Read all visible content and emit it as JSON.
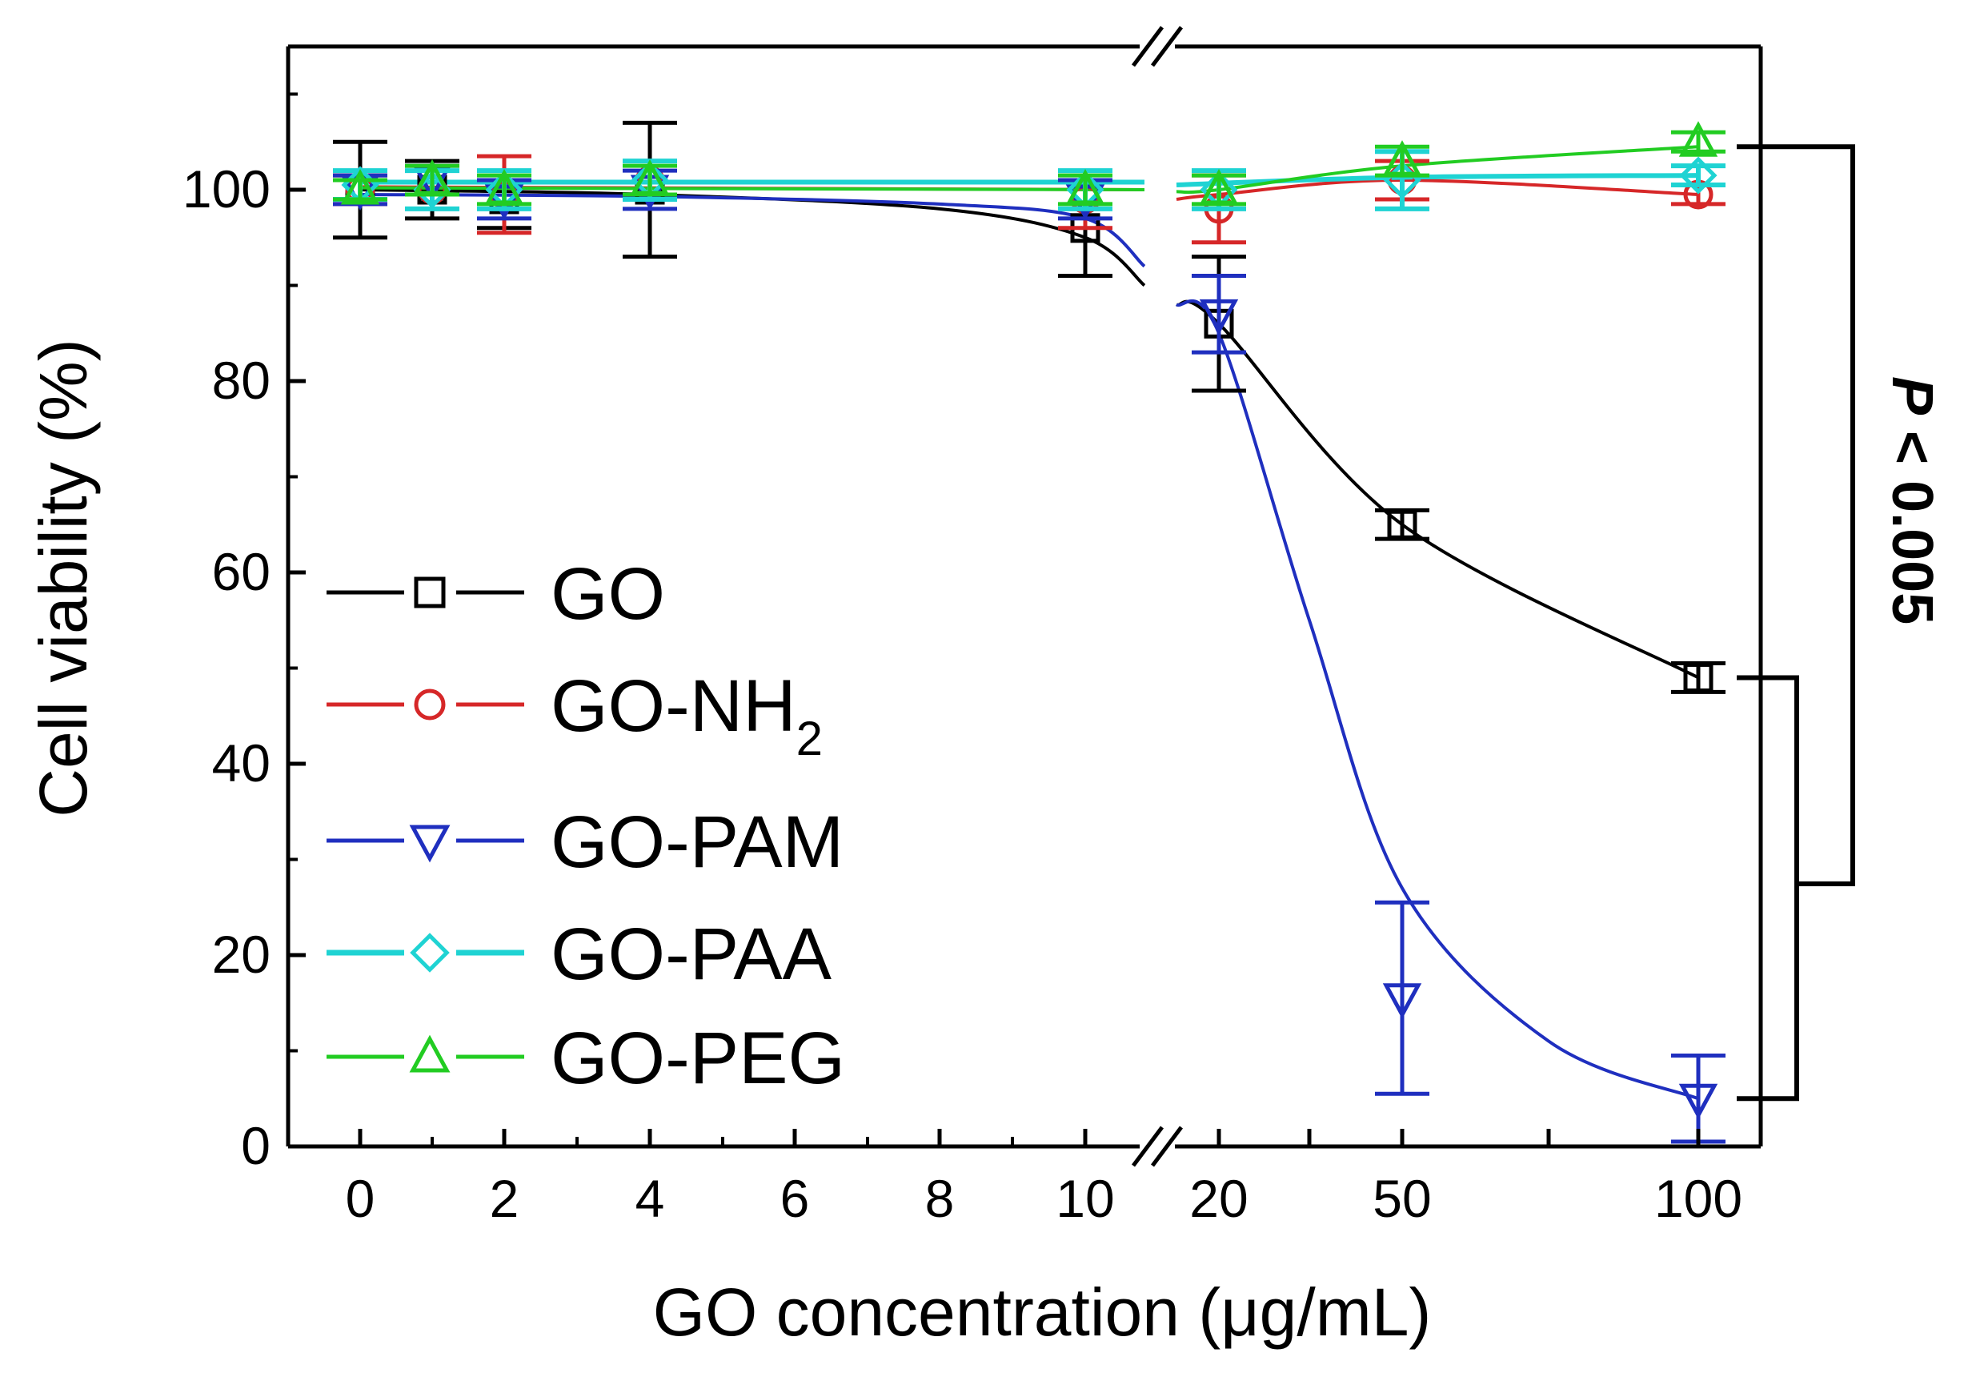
{
  "chart_data": {
    "type": "scatter",
    "xlabel": "GO concentration (μg/mL)",
    "ylabel": "Cell viability (%)",
    "ylim": [
      0,
      115
    ],
    "y_ticks": [
      "0",
      "20",
      "40",
      "60",
      "80",
      "100"
    ],
    "x_ticks": [
      "0",
      "2",
      "4",
      "6",
      "8",
      "10",
      "20",
      "50",
      "100"
    ],
    "x_axis_break": "between 10 and 20",
    "annotation": {
      "italic": "P",
      "rest": " < 0.005",
      "compares": [
        "GO-PEG vs GO (100 μg/mL)",
        "GO vs GO-PAM (100 μg/mL)"
      ]
    },
    "series": [
      {
        "name": "GO",
        "name_main": "GO",
        "name_sub": "",
        "color": "#000000",
        "marker": "square",
        "x": [
          "0",
          "1",
          "2",
          "4",
          "10",
          "20",
          "50",
          "100"
        ],
        "y": [
          100,
          100,
          99,
          100,
          96,
          86,
          65,
          49
        ],
        "err": [
          5,
          3,
          3,
          7,
          5,
          7,
          1.5,
          1.5
        ]
      },
      {
        "name": "GO-NH2",
        "name_main": "GO-NH",
        "name_sub": "2",
        "color": "#d62728",
        "marker": "circle",
        "x": [
          "0",
          "1",
          "2",
          "4",
          "10",
          "20",
          "50",
          "100"
        ],
        "y": [
          100,
          100,
          99.5,
          101,
          99,
          98,
          101,
          99.5
        ],
        "err": [
          1.5,
          2,
          4,
          2,
          3,
          3.5,
          2,
          1
        ]
      },
      {
        "name": "GO-PAM",
        "name_main": "GO-PAM",
        "name_sub": "",
        "color": "#1f2fbf",
        "marker": "triangle-down",
        "x": [
          "0",
          "1",
          "2",
          "4",
          "10",
          "20",
          "50",
          "100"
        ],
        "y": [
          100,
          101,
          99,
          100,
          99,
          87,
          15.5,
          5
        ],
        "err": [
          1.5,
          1.5,
          2,
          2,
          2,
          4,
          10,
          4.5
        ]
      },
      {
        "name": "GO-PAA",
        "name_main": "GO-PAA",
        "name_sub": "",
        "color": "#1fd3d3",
        "marker": "diamond",
        "x": [
          "0",
          "1",
          "2",
          "4",
          "10",
          "20",
          "50",
          "100"
        ],
        "y": [
          100.5,
          100,
          100,
          101,
          100,
          100,
          101,
          101.5
        ],
        "err": [
          1.5,
          2,
          2,
          2,
          2,
          2,
          3,
          1
        ]
      },
      {
        "name": "GO-PEG",
        "name_main": "GO-PEG",
        "name_sub": "",
        "color": "#22cc22",
        "marker": "triangle-up",
        "x": [
          "0",
          "1",
          "2",
          "4",
          "10",
          "20",
          "50",
          "100"
        ],
        "y": [
          100,
          101,
          100,
          101,
          100,
          100,
          103,
          105
        ],
        "err": [
          1,
          1.5,
          1.5,
          1.5,
          1.5,
          1.5,
          1.5,
          1
        ]
      }
    ]
  }
}
